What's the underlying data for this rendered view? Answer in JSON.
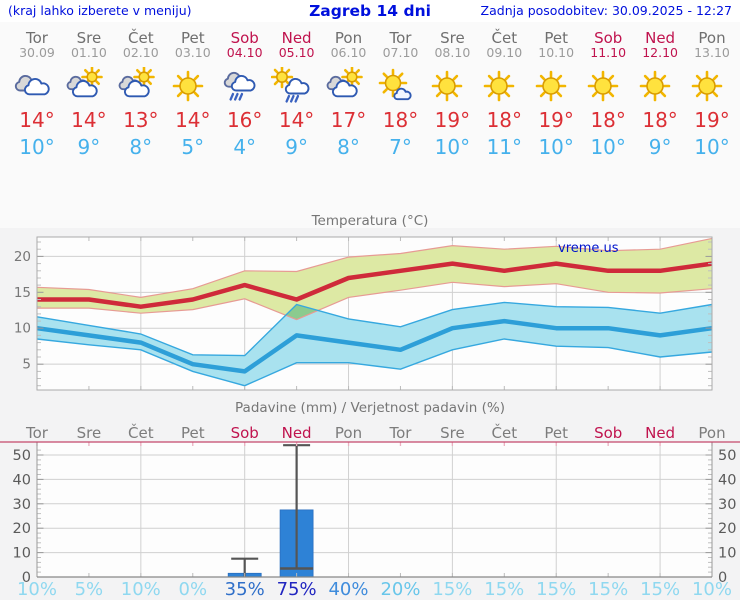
{
  "header": {
    "location_hint": "(kraj lahko izberete v meniju)",
    "title": "Zagreb 14 dni",
    "last_update": "Zadnja posodobitev: 30.09.2025 - 12:27"
  },
  "watermark": "vreme.us",
  "days": [
    {
      "name": "Tor",
      "date": "30.09",
      "weekend": false,
      "icon": "cloudy",
      "high": "14°",
      "low": "10°",
      "prob": "10%"
    },
    {
      "name": "Sre",
      "date": "01.10",
      "weekend": false,
      "icon": "partly-sunny",
      "high": "14°",
      "low": "9°",
      "prob": "5%"
    },
    {
      "name": "Čet",
      "date": "02.10",
      "weekend": false,
      "icon": "partly-sunny",
      "high": "13°",
      "low": "8°",
      "prob": "10%"
    },
    {
      "name": "Pet",
      "date": "03.10",
      "weekend": false,
      "icon": "sunny",
      "high": "14°",
      "low": "5°",
      "prob": "0%"
    },
    {
      "name": "Sob",
      "date": "04.10",
      "weekend": true,
      "icon": "rain",
      "high": "16°",
      "low": "4°",
      "prob": "35%"
    },
    {
      "name": "Ned",
      "date": "05.10",
      "weekend": true,
      "icon": "sun-rain",
      "high": "14°",
      "low": "9°",
      "prob": "75%"
    },
    {
      "name": "Pon",
      "date": "06.10",
      "weekend": false,
      "icon": "partly-sunny",
      "high": "17°",
      "low": "8°",
      "prob": "40%"
    },
    {
      "name": "Tor",
      "date": "07.10",
      "weekend": false,
      "icon": "sun-small-cloud",
      "high": "18°",
      "low": "7°",
      "prob": "20%"
    },
    {
      "name": "Sre",
      "date": "08.10",
      "weekend": false,
      "icon": "sunny",
      "high": "19°",
      "low": "10°",
      "prob": "15%"
    },
    {
      "name": "Čet",
      "date": "09.10",
      "weekend": false,
      "icon": "sunny",
      "high": "18°",
      "low": "11°",
      "prob": "15%"
    },
    {
      "name": "Pet",
      "date": "10.10",
      "weekend": false,
      "icon": "sunny",
      "high": "19°",
      "low": "10°",
      "prob": "15%"
    },
    {
      "name": "Sob",
      "date": "11.10",
      "weekend": true,
      "icon": "sunny",
      "high": "18°",
      "low": "10°",
      "prob": "15%"
    },
    {
      "name": "Ned",
      "date": "12.10",
      "weekend": true,
      "icon": "sunny",
      "high": "18°",
      "low": "9°",
      "prob": "15%"
    },
    {
      "name": "Pon",
      "date": "13.10",
      "weekend": false,
      "icon": "sunny",
      "high": "19°",
      "low": "10°",
      "prob": "10%"
    }
  ],
  "chart_data": [
    {
      "type": "line",
      "title": "Temperatura (°C)",
      "x_labels": [
        "Tor",
        "Sre",
        "Čet",
        "Pet",
        "Sob",
        "Ned",
        "Pon",
        "Tor",
        "Sre",
        "Čet",
        "Pet",
        "Sob",
        "Ned",
        "Pon"
      ],
      "ylim": [
        1.4,
        22.7
      ],
      "yticks": [
        5,
        10,
        15,
        20
      ],
      "grid": true,
      "series": [
        {
          "name": "max temperature",
          "values": [
            14,
            14,
            13,
            14,
            16,
            14,
            17,
            18,
            19,
            18,
            19,
            18,
            18,
            19
          ],
          "band_upper": [
            15.7,
            15.4,
            14.3,
            15.5,
            18.0,
            17.9,
            19.9,
            20.4,
            21.5,
            21.0,
            21.4,
            20.8,
            21.0,
            22.5
          ],
          "band_lower": [
            12.8,
            12.8,
            12.1,
            12.6,
            14.1,
            11.2,
            14.3,
            15.3,
            16.4,
            15.8,
            16.2,
            15.0,
            14.9,
            15.5
          ]
        },
        {
          "name": "min temperature",
          "values": [
            10,
            9,
            8,
            5,
            4,
            9,
            8,
            7,
            10,
            11,
            10,
            10,
            9,
            10
          ],
          "band_upper": [
            11.6,
            10.4,
            9.2,
            6.3,
            6.2,
            13.3,
            11.3,
            10.2,
            12.6,
            13.6,
            13.0,
            12.9,
            12.1,
            13.3
          ],
          "band_lower": [
            8.5,
            7.7,
            7.0,
            4.0,
            2.0,
            5.2,
            5.2,
            4.3,
            7.0,
            8.5,
            7.5,
            7.3,
            6.0,
            6.7
          ]
        }
      ]
    },
    {
      "type": "bar",
      "title": "Padavine (mm) / Verjetnost padavin (%)",
      "x_labels": [
        "Tor",
        "Sre",
        "Čet",
        "Pet",
        "Sob",
        "Ned",
        "Pon",
        "Tor",
        "Sre",
        "Čet",
        "Pet",
        "Sob",
        "Ned",
        "Pon"
      ],
      "ylim": [
        0,
        55
      ],
      "yticks": [
        0,
        10,
        20,
        30,
        40,
        50
      ],
      "grid": true,
      "values": [
        0,
        0,
        0,
        0,
        1.5,
        27.5,
        0,
        0,
        0,
        0,
        0,
        0,
        0,
        0
      ],
      "whiskers": [
        {
          "index": 4,
          "min": 0,
          "max": 7.5
        },
        {
          "index": 5,
          "min": 3.5,
          "max": 54,
          "clipped_top": true
        }
      ],
      "probabilities": [
        10,
        5,
        10,
        0,
        35,
        75,
        40,
        20,
        15,
        15,
        15,
        15,
        15,
        10
      ],
      "probability_labels": [
        "10%",
        "5%",
        "10%",
        "0%",
        "35%",
        "75%",
        "40%",
        "20%",
        "15%",
        "15%",
        "15%",
        "15%",
        "15%",
        "10%"
      ],
      "probability_colors": [
        "#8fd8f0",
        "#8fd8f0",
        "#8fd8f0",
        "#8fd8f0",
        "#2f6fc9",
        "#2126c0",
        "#3f8cdc",
        "#68c6ea",
        "#8fd8f0",
        "#8fd8f0",
        "#8fd8f0",
        "#8fd8f0",
        "#8fd8f0",
        "#8fd8f0"
      ]
    }
  ],
  "colors": {
    "high_temp": "#dc2f35",
    "low_temp": "#45b1ec",
    "weekend": "#c0134e",
    "weekday": "#6f6f6f",
    "max_line": "#cf2a3a",
    "max_band": "#dde9a4",
    "max_edge": "#e79b94",
    "min_line": "#2d9fd8",
    "min_band": "#a9e2ef",
    "min_edge": "#36a8df",
    "band_overlap": "#8bcb8f",
    "bar": "#2e82d6",
    "whisker": "#555555",
    "grid": "#d0d0d0",
    "axis_text": "#777777",
    "precip_topline": "#c4476b"
  }
}
